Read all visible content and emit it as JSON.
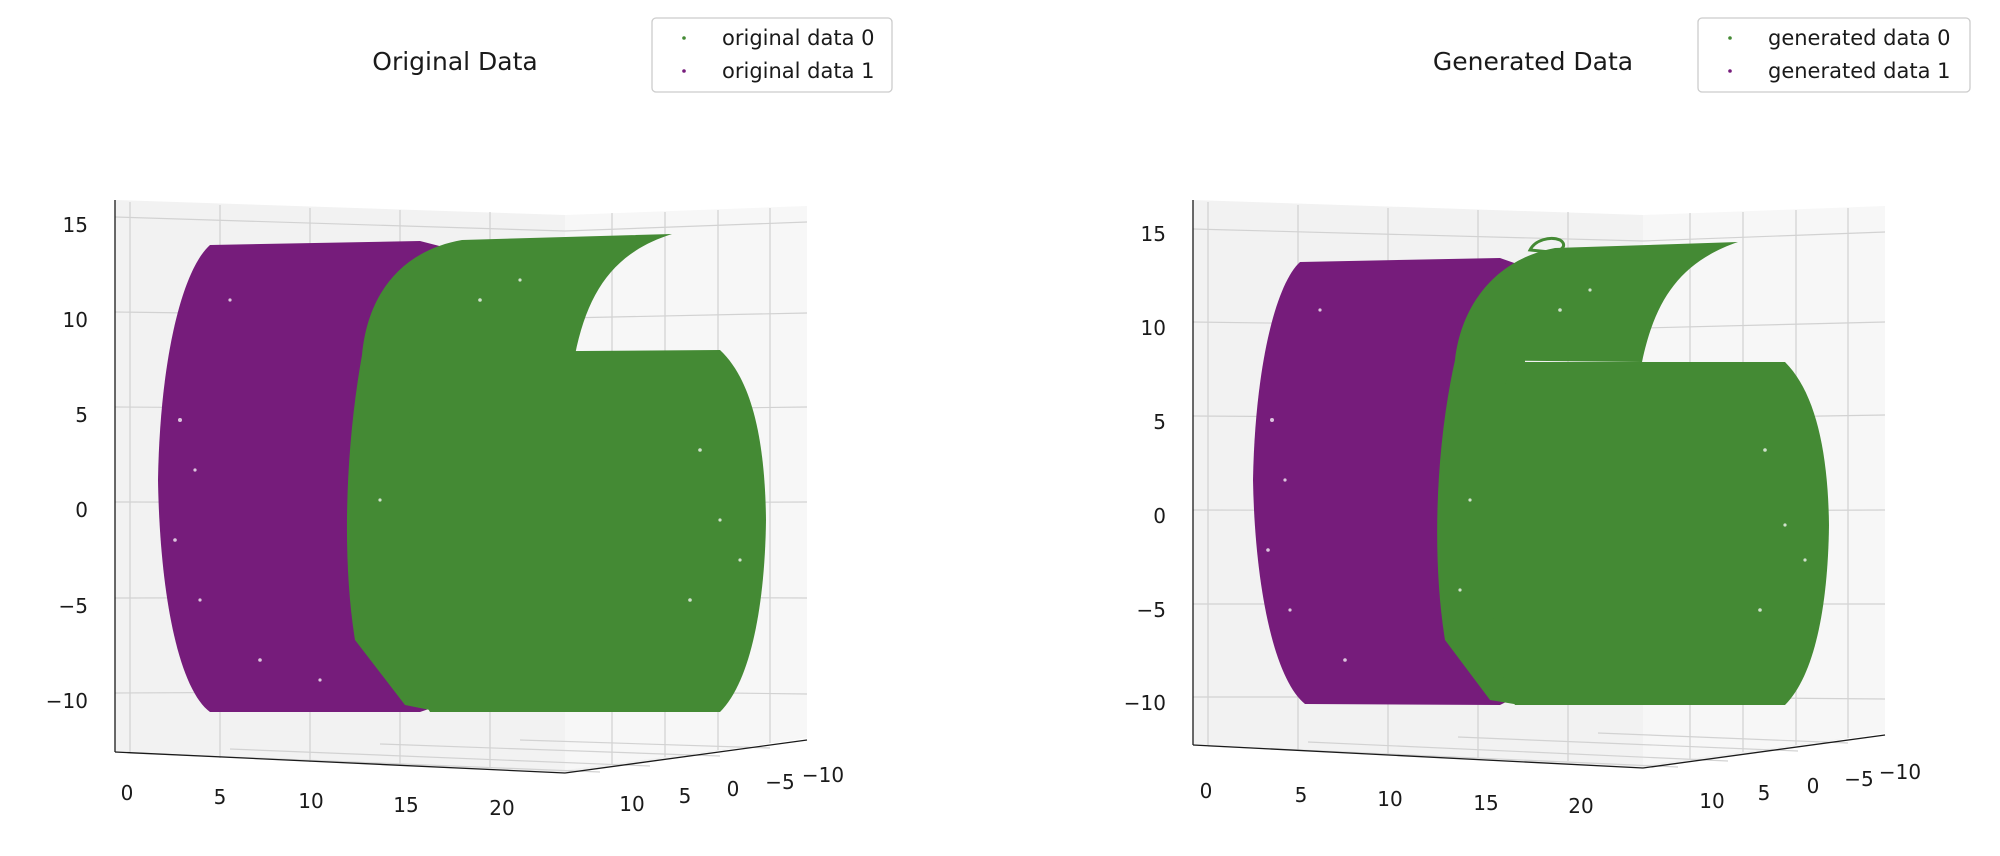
{
  "chart_data": [
    {
      "type": "scatter",
      "title": "Original Data",
      "series": [
        {
          "name": "original data 0",
          "color": "#448a34",
          "shape": "S-curve surface with cylindrical hull"
        },
        {
          "name": "original data 1",
          "color": "#761c7b",
          "shape": "cylindrical hull"
        }
      ],
      "legend_position": "top-right",
      "grid": true,
      "axes": {
        "x": {
          "range": [
            -1,
            21
          ],
          "ticks": [
            "0",
            "5",
            "10",
            "15",
            "20"
          ]
        },
        "y": {
          "range": [
            -11,
            11
          ],
          "ticks": [
            "10",
            "5",
            "0",
            "−5",
            "−10"
          ]
        },
        "z": {
          "range": [
            -11,
            15
          ],
          "ticks": [
            "15",
            "10",
            "5",
            "0",
            "−5",
            "−10"
          ]
        }
      }
    },
    {
      "type": "scatter",
      "title": "Generated Data",
      "series": [
        {
          "name": "generated data 0",
          "color": "#448a34",
          "shape": "S-curve surface with cylindrical hull"
        },
        {
          "name": "generated data 1",
          "color": "#761c7b",
          "shape": "cylindrical hull"
        }
      ],
      "legend_position": "top-right",
      "grid": true,
      "axes": {
        "x": {
          "range": [
            -1,
            21
          ],
          "ticks": [
            "0",
            "5",
            "10",
            "15",
            "20"
          ]
        },
        "y": {
          "range": [
            -11,
            11
          ],
          "ticks": [
            "10",
            "5",
            "0",
            "−5",
            "−10"
          ]
        },
        "z": {
          "range": [
            -11,
            15
          ],
          "ticks": [
            "15",
            "10",
            "5",
            "0",
            "−5",
            "−10"
          ]
        }
      }
    }
  ]
}
